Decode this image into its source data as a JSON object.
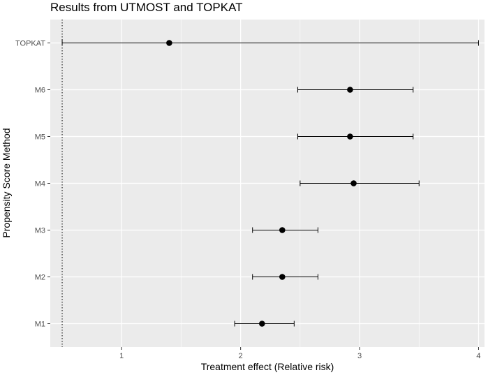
{
  "chart_data": {
    "type": "forest",
    "title": "Results from UTMOST and TOPKAT",
    "xlabel": "Treatment effect (Relative risk)",
    "ylabel": "Propensity Score Method",
    "xlim": [
      0.4,
      4.05
    ],
    "x_ticks": [
      1,
      2,
      3,
      4
    ],
    "x_tick_labels": [
      "1",
      "2",
      "3",
      "4"
    ],
    "reference_line": 0.5,
    "grid": true,
    "background_color": "#ebebeb",
    "grid_color": "#ffffff",
    "point_color": "#000000",
    "categories": [
      "TOPKAT",
      "M6",
      "M5",
      "M4",
      "M3",
      "M2",
      "M1"
    ],
    "points": [
      {
        "label": "TOPKAT",
        "estimate": 1.4,
        "lower": 0.5,
        "upper": 4.0
      },
      {
        "label": "M6",
        "estimate": 2.92,
        "lower": 2.48,
        "upper": 3.45
      },
      {
        "label": "M5",
        "estimate": 2.92,
        "lower": 2.48,
        "upper": 3.45
      },
      {
        "label": "M4",
        "estimate": 2.95,
        "lower": 2.5,
        "upper": 3.5
      },
      {
        "label": "M3",
        "estimate": 2.35,
        "lower": 2.1,
        "upper": 2.65
      },
      {
        "label": "M2",
        "estimate": 2.35,
        "lower": 2.1,
        "upper": 2.65
      },
      {
        "label": "M1",
        "estimate": 2.18,
        "lower": 1.95,
        "upper": 2.45
      }
    ]
  }
}
